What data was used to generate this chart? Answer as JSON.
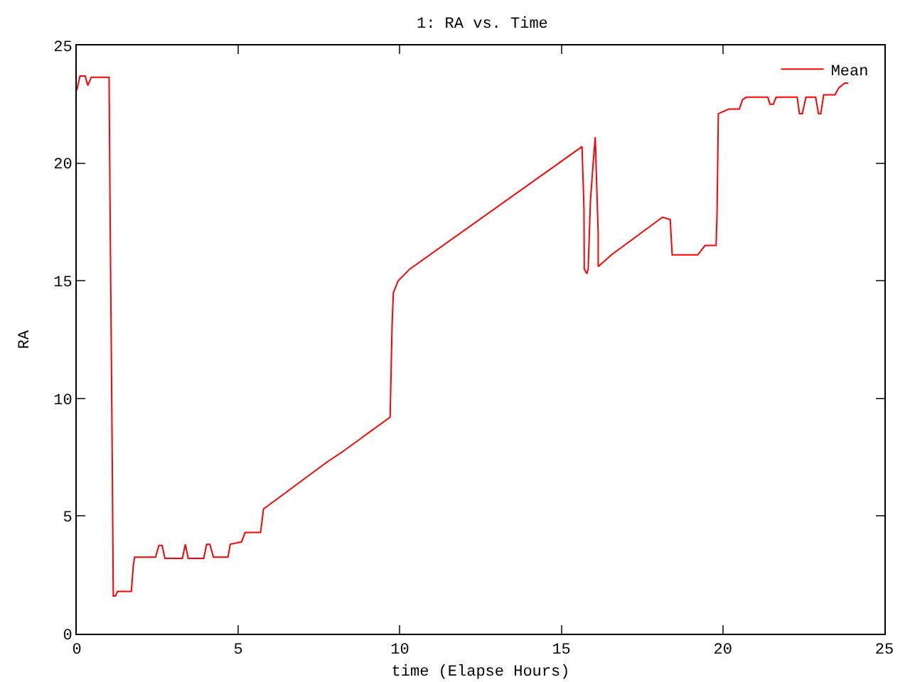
{
  "chart_data": {
    "type": "line",
    "title": "1: RA vs. Time",
    "xlabel": "time (Elapse Hours)",
    "ylabel": "RA",
    "xlim": [
      0,
      25
    ],
    "xticks": [
      0,
      5,
      10,
      15,
      20,
      25
    ],
    "ylim": [
      0,
      25
    ],
    "yticks": [
      0,
      5,
      10,
      15,
      20,
      25
    ],
    "grid": false,
    "legend": "top right",
    "marker": "none",
    "line_style": "solid",
    "series": [
      {
        "name": "Mean",
        "color": "#ff0000",
        "x": [
          0,
          0.1,
          0.26,
          0.34,
          0.45,
          1.0,
          1.03,
          1.1,
          1.13,
          1.2,
          1.26,
          1.69,
          1.75,
          1.79,
          2.44,
          2.54,
          2.64,
          2.73,
          3.27,
          3.36,
          3.45,
          3.93,
          4.02,
          4.12,
          4.23,
          4.68,
          4.75,
          5.1,
          5.21,
          5.69,
          5.78,
          7.75,
          8.19,
          9.7,
          9.76,
          9.8,
          9.95,
          10.31,
          15.64,
          15.7,
          15.71,
          15.79,
          15.83,
          15.9,
          15.99,
          16.05,
          16.08,
          16.14,
          16.14,
          16.55,
          18.13,
          18.37,
          18.43,
          19.22,
          19.45,
          19.79,
          19.82,
          19.86,
          20.19,
          20.51,
          20.61,
          20.73,
          21.39,
          21.46,
          21.56,
          21.65,
          22.3,
          22.37,
          22.46,
          22.57,
          22.87,
          22.96,
          23.03,
          23.12,
          23.47,
          23.59,
          23.77,
          23.88
        ],
        "values": [
          23.1,
          23.7,
          23.7,
          23.3,
          23.65,
          23.65,
          18.2,
          7.1,
          1.6,
          1.6,
          1.8,
          1.8,
          2.9,
          3.25,
          3.25,
          3.75,
          3.75,
          3.2,
          3.2,
          3.8,
          3.2,
          3.2,
          3.8,
          3.8,
          3.25,
          3.25,
          3.8,
          3.9,
          4.3,
          4.3,
          5.3,
          7.3,
          7.7,
          9.2,
          13.1,
          14.5,
          15.0,
          15.5,
          20.7,
          18.1,
          15.5,
          15.3,
          15.5,
          18.4,
          20.1,
          21.1,
          19.7,
          17.0,
          15.6,
          16.1,
          17.7,
          17.6,
          16.1,
          16.1,
          16.5,
          16.5,
          17.9,
          22.1,
          22.3,
          22.3,
          22.7,
          22.8,
          22.8,
          22.5,
          22.5,
          22.8,
          22.8,
          22.1,
          22.1,
          22.8,
          22.8,
          22.1,
          22.1,
          22.9,
          22.9,
          23.2,
          23.4,
          23.4
        ]
      }
    ]
  }
}
